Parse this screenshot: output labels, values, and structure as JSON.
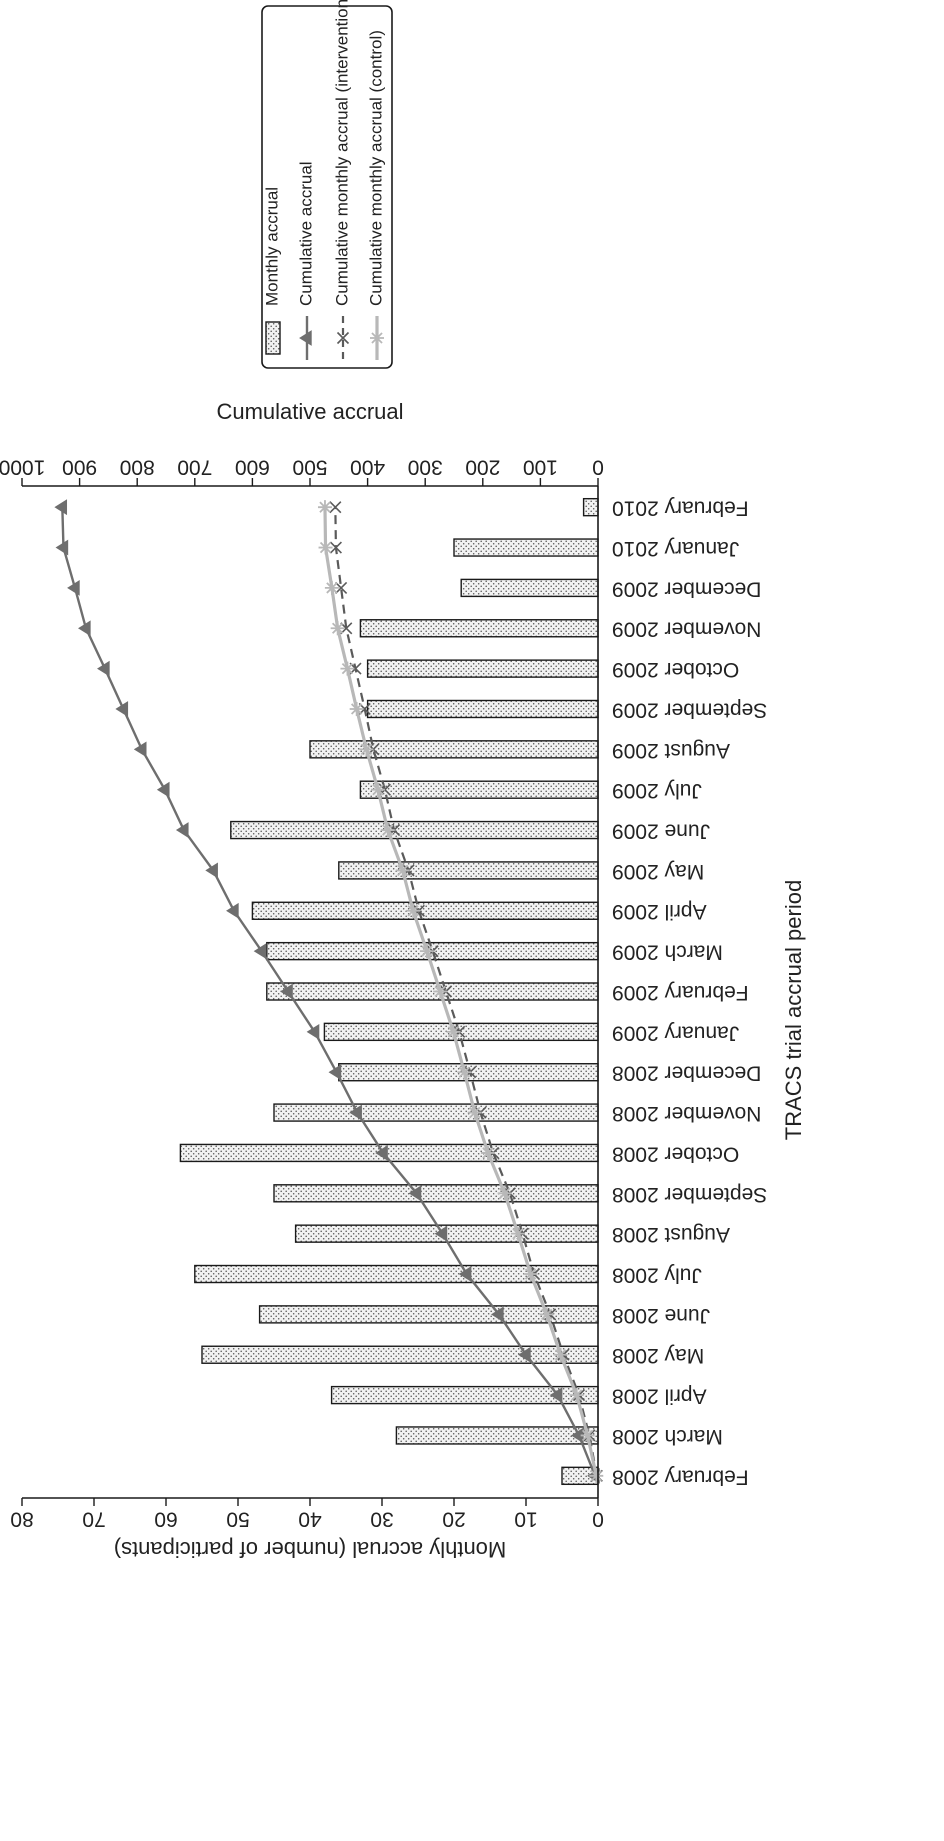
{
  "chart_data": {
    "type": "bar",
    "orientation": "rotated 90 degrees (bars grow upward-left on page)",
    "categories": [
      "February 2008",
      "March 2008",
      "April 2008",
      "May 2008",
      "June 2008",
      "July 2008",
      "August 2008",
      "September 2008",
      "October 2008",
      "November 2008",
      "December 2008",
      "January 2009",
      "February 2009",
      "March 2009",
      "April 2009",
      "May 2009",
      "June 2009",
      "July 2009",
      "August 2009",
      "September 2009",
      "October 2009",
      "November 2009",
      "December 2009",
      "January 2010",
      "February 2010"
    ],
    "xlabel": "TRACS trial accrual period",
    "y_left_label": "Monthly accrual (number of participants)",
    "y_left_ticks": [
      "0",
      "10",
      "20",
      "30",
      "40",
      "50",
      "60",
      "70",
      "80"
    ],
    "y_left_lim": [
      0,
      80
    ],
    "y_right_label": "Cumulative accrual",
    "y_right_ticks": [
      "0",
      "100",
      "200",
      "300",
      "400",
      "500",
      "600",
      "700",
      "800",
      "900",
      "1000"
    ],
    "y_right_lim": [
      0,
      1000
    ],
    "series": [
      {
        "name": "Monthly accrual",
        "type": "bar",
        "axis": "left",
        "values": [
          5,
          28,
          37,
          55,
          47,
          56,
          42,
          45,
          58,
          45,
          36,
          38,
          46,
          46,
          48,
          36,
          51,
          33,
          40,
          32,
          32,
          33,
          19,
          20,
          2
        ]
      },
      {
        "name": "Cumulative accrual",
        "type": "line",
        "axis": "right",
        "values": [
          5,
          33,
          70,
          125,
          172,
          228,
          270,
          315,
          373,
          418,
          454,
          492,
          538,
          584,
          632,
          668,
          719,
          752,
          792,
          824,
          856,
          889,
          908,
          928,
          930
        ]
      },
      {
        "name": "Cumulative monthly accrual (intervention)",
        "type": "line",
        "axis": "right",
        "values": [
          2,
          15,
          33,
          60,
          83,
          111,
          131,
          153,
          182,
          204,
          222,
          241,
          264,
          287,
          311,
          329,
          354,
          370,
          390,
          405,
          421,
          437,
          446,
          455,
          456
        ]
      },
      {
        "name": "Cumulative monthly accrual (control)",
        "type": "line",
        "axis": "right",
        "values": [
          3,
          18,
          37,
          65,
          89,
          117,
          139,
          162,
          191,
          214,
          232,
          251,
          274,
          297,
          321,
          339,
          365,
          382,
          402,
          419,
          435,
          452,
          462,
          473,
          474
        ]
      }
    ],
    "legend_position": "top-right (rotated)",
    "grid": false
  },
  "colors": {
    "bar_fill": "#f1f1f1",
    "bar_stroke": "#1a1a1a",
    "cumulative": "#6e6e6e",
    "intervention": "#5a5a5a",
    "control": "#b8b8b8",
    "axis": "#1a1a1a"
  }
}
